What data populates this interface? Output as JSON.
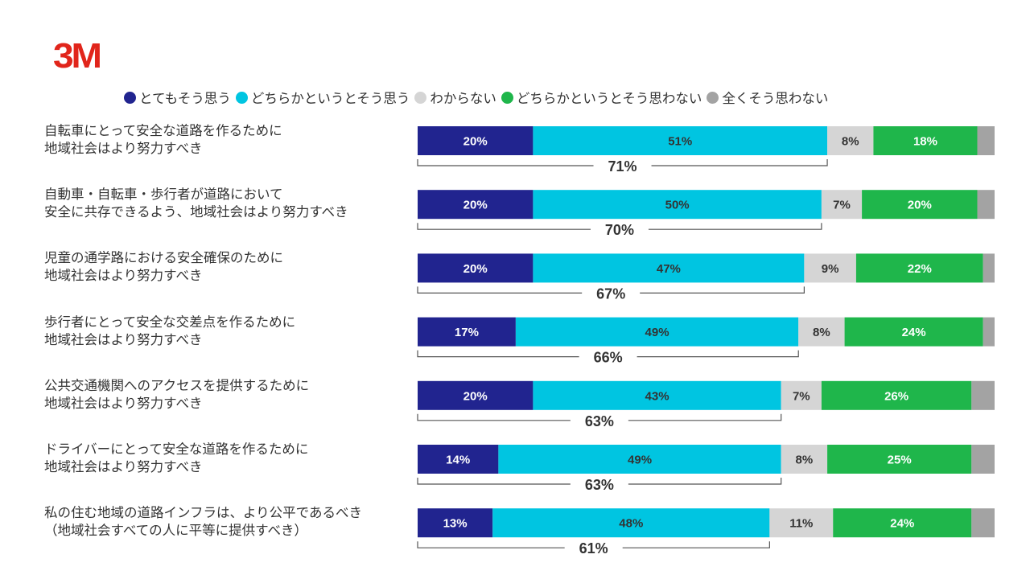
{
  "brand": {
    "logo_text": "3M",
    "color": "#e1251b"
  },
  "chart_data": {
    "type": "bar",
    "orientation": "horizontal-stacked-100",
    "unit": "%",
    "series": [
      {
        "name": "とてもそう思う",
        "color": "#21248f",
        "label_color": "#ffffff",
        "values": [
          20,
          20,
          20,
          17,
          20,
          14,
          13
        ]
      },
      {
        "name": "どちらかというとそう思う",
        "color": "#00c5e1",
        "label_color": "#333333",
        "values": [
          51,
          50,
          47,
          49,
          43,
          49,
          48
        ]
      },
      {
        "name": "わからない",
        "color": "#d5d5d5",
        "label_color": "#333333",
        "values": [
          8,
          7,
          9,
          8,
          7,
          8,
          11
        ]
      },
      {
        "name": "どちらかというとそう思わない",
        "color": "#1fb64b",
        "label_color": "#ffffff",
        "values": [
          18,
          20,
          22,
          24,
          26,
          25,
          24
        ]
      },
      {
        "name": "全くそう思わない",
        "color": "#a3a3a3",
        "label_color": "#ffffff",
        "values": [
          3,
          3,
          2,
          2,
          4,
          4,
          4
        ]
      }
    ],
    "labeled_series": [
      0,
      1,
      2,
      3
    ],
    "categories": [
      {
        "line1": "自転車にとって安全な道路を作るために",
        "line2": "地域社会はより努力すべき"
      },
      {
        "line1": "自動車・自転車・歩行者が道路において",
        "line2": "安全に共存できるよう、地域社会はより努力すべき"
      },
      {
        "line1": "児童の通学路における安全確保のために",
        "line2": "地域社会はより努力すべき"
      },
      {
        "line1": "歩行者にとって安全な交差点を作るために",
        "line2": "地域社会はより努力すべき"
      },
      {
        "line1": "公共交通機関へのアクセスを提供するために",
        "line2": "地域社会はより努力すべき"
      },
      {
        "line1": "ドライバーにとって安全な道路を作るために",
        "line2": "地域社会はより努力すべき"
      },
      {
        "line1": "私の住む地域の道路インフラは、より公平であるべき",
        "line2": "（地域社会すべての人に平等に提供すべき）"
      }
    ],
    "agree_totals": [
      71,
      70,
      67,
      66,
      63,
      63,
      61
    ],
    "xlim": [
      0,
      100
    ]
  }
}
